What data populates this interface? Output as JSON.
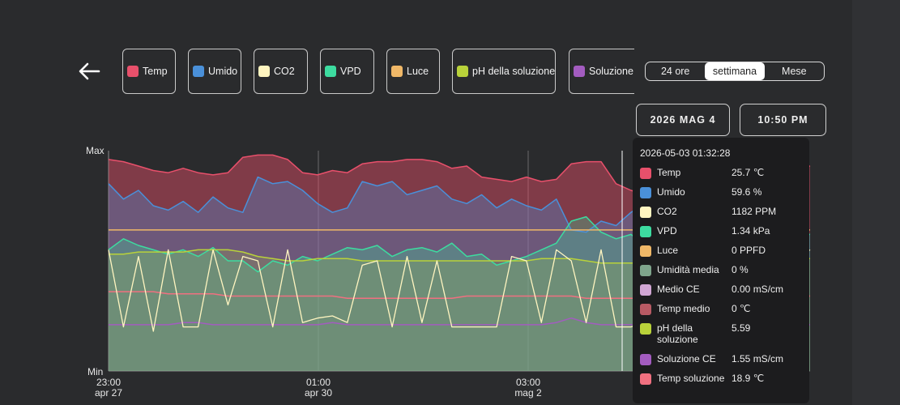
{
  "legend": [
    {
      "label": "Temp",
      "color": "#e8506b"
    },
    {
      "label": "Umido",
      "color": "#4a90d9"
    },
    {
      "label": "CO2",
      "color": "#fff5c0"
    },
    {
      "label": "VPD",
      "color": "#3ddca0"
    },
    {
      "label": "Luce",
      "color": "#f0b868"
    },
    {
      "label": "pH della soluzione",
      "color": "#b9d23a"
    },
    {
      "label": "Soluzione CE",
      "color": "#a35cc0"
    }
  ],
  "range_selector": {
    "options": [
      "24 ore",
      "settimana",
      "Mese"
    ],
    "selected": "settimana"
  },
  "date_button": "2026 MAG 4",
  "time_button": "10:50 PM",
  "chart_data": {
    "type": "line",
    "y_labels": {
      "max": "Max",
      "min": "Min"
    },
    "x_ticks": [
      {
        "time": "23:00",
        "date": "apr 27"
      },
      {
        "time": "01:00",
        "date": "apr 30"
      },
      {
        "time": "03:00",
        "date": "mag 2"
      }
    ],
    "series": [
      {
        "name": "Temp",
        "color": "#e8506b",
        "values": [
          0.96,
          0.95,
          0.93,
          0.91,
          0.9,
          0.92,
          0.9,
          0.89,
          0.9,
          0.97,
          0.98,
          0.98,
          0.96,
          0.9,
          0.89,
          0.91,
          0.9,
          0.94,
          0.95,
          0.95,
          0.96,
          0.96,
          0.95,
          0.92,
          0.93,
          0.88,
          0.87,
          0.86,
          0.88,
          0.86,
          0.87,
          0.94,
          0.95,
          0.95,
          0.85,
          0.82,
          0.8,
          0.8,
          0.81,
          0.8,
          0.82,
          0.94,
          0.94,
          0.92,
          0.9,
          0.9,
          0.92,
          0.93
        ]
      },
      {
        "name": "Umido",
        "color": "#4a90d9",
        "values": [
          0.85,
          0.78,
          0.82,
          0.75,
          0.73,
          0.77,
          0.72,
          0.79,
          0.74,
          0.72,
          0.88,
          0.85,
          0.86,
          0.82,
          0.76,
          0.72,
          0.74,
          0.86,
          0.84,
          0.86,
          0.8,
          0.82,
          0.84,
          0.78,
          0.76,
          0.8,
          0.74,
          0.78,
          0.75,
          0.73,
          0.78,
          0.64,
          0.63,
          0.68,
          0.66,
          0.72,
          0.76,
          0.73,
          0.76,
          0.7,
          0.72,
          0.62,
          0.64,
          0.6,
          0.62,
          0.64,
          0.63,
          0.62
        ]
      },
      {
        "name": "VPD",
        "color": "#3ddca0",
        "values": [
          0.55,
          0.6,
          0.57,
          0.55,
          0.53,
          0.55,
          0.52,
          0.56,
          0.5,
          0.5,
          0.45,
          0.5,
          0.48,
          0.52,
          0.5,
          0.53,
          0.56,
          0.55,
          0.57,
          0.52,
          0.55,
          0.56,
          0.54,
          0.58,
          0.52,
          0.53,
          0.48,
          0.5,
          0.52,
          0.55,
          0.58,
          0.68,
          0.7,
          0.63,
          0.6,
          0.62,
          0.57,
          0.6,
          0.58,
          0.62,
          0.58,
          0.6,
          0.61,
          0.64,
          0.62,
          0.6,
          0.62,
          0.62
        ]
      },
      {
        "name": "pH della soluzione",
        "color": "#b9d23a",
        "values": [
          0.53,
          0.53,
          0.54,
          0.54,
          0.54,
          0.54,
          0.55,
          0.55,
          0.55,
          0.54,
          0.52,
          0.51,
          0.5,
          0.5,
          0.51,
          0.51,
          0.51,
          0.5,
          0.5,
          0.5,
          0.5,
          0.5,
          0.5,
          0.5,
          0.5,
          0.5,
          0.5,
          0.5,
          0.5,
          0.51,
          0.51,
          0.51,
          0.5,
          0.49,
          0.49,
          0.49,
          0.49,
          0.5,
          0.5,
          0.5,
          0.5,
          0.5,
          0.5,
          0.5,
          0.5,
          0.51,
          0.51,
          0.51
        ]
      },
      {
        "name": "Luce",
        "color": "#f0b868",
        "values": [
          0.64,
          0.64,
          0.64,
          0.64,
          0.64,
          0.64,
          0.64,
          0.64,
          0.64,
          0.64,
          0.64,
          0.64,
          0.64,
          0.64,
          0.64,
          0.64,
          0.64,
          0.64,
          0.64,
          0.64,
          0.64,
          0.64,
          0.64,
          0.64,
          0.64,
          0.64,
          0.64,
          0.64,
          0.64,
          0.64,
          0.64,
          0.64,
          0.64,
          0.64,
          0.64,
          0.64,
          0.64,
          0.64,
          0.64,
          0.64,
          0.64,
          0.64,
          0.64,
          0.64,
          0.64,
          0.64,
          0.64,
          0.64
        ]
      },
      {
        "name": "Temp soluzione",
        "color": "#f07080",
        "values": [
          0.36,
          0.36,
          0.36,
          0.36,
          0.35,
          0.35,
          0.35,
          0.35,
          0.34,
          0.34,
          0.34,
          0.34,
          0.34,
          0.34,
          0.34,
          0.34,
          0.33,
          0.33,
          0.33,
          0.33,
          0.33,
          0.33,
          0.33,
          0.33,
          0.34,
          0.34,
          0.34,
          0.34,
          0.34,
          0.34,
          0.34,
          0.34,
          0.33,
          0.33,
          0.33,
          0.33,
          0.33,
          0.33,
          0.33,
          0.34,
          0.34,
          0.34,
          0.34,
          0.34,
          0.34,
          0.34,
          0.34,
          0.34
        ]
      },
      {
        "name": "Soluzione CE",
        "color": "#a35cc0",
        "values": [
          0.21,
          0.21,
          0.21,
          0.21,
          0.21,
          0.22,
          0.22,
          0.21,
          0.21,
          0.21,
          0.21,
          0.21,
          0.21,
          0.21,
          0.21,
          0.22,
          0.21,
          0.21,
          0.21,
          0.21,
          0.21,
          0.21,
          0.21,
          0.21,
          0.21,
          0.21,
          0.21,
          0.21,
          0.21,
          0.21,
          0.22,
          0.24,
          0.22,
          0.21,
          0.21,
          0.21,
          0.21,
          0.21,
          0.21,
          0.21,
          0.21,
          0.21,
          0.21,
          0.21,
          0.21,
          0.21,
          0.21,
          0.21
        ]
      },
      {
        "name": "CO2",
        "color": "#fff5c0",
        "values": [
          0.55,
          0.2,
          0.52,
          0.18,
          0.55,
          0.2,
          0.2,
          0.55,
          0.3,
          0.52,
          0.5,
          0.2,
          0.55,
          0.22,
          0.24,
          0.25,
          0.22,
          0.48,
          0.5,
          0.2,
          0.52,
          0.22,
          0.5,
          0.2,
          0.2,
          0.2,
          0.2,
          0.52,
          0.5,
          0.22,
          0.55,
          0.5,
          0.22,
          0.55,
          0.2,
          0.2,
          0.22,
          0.52,
          0.5,
          0.2,
          0.35,
          0.2,
          0.52,
          0.55,
          0.55,
          0.2,
          0.5,
          0.55
        ]
      }
    ]
  },
  "tooltip": {
    "timestamp": "2026-05-03 01:32:28",
    "rows": [
      {
        "label": "Temp",
        "value": "25.7 ℃",
        "color": "#e8506b"
      },
      {
        "label": "Umido",
        "value": "59.6 %",
        "color": "#4a90d9"
      },
      {
        "label": "CO2",
        "value": "1182 PPM",
        "color": "#fff5c0"
      },
      {
        "label": "VPD",
        "value": "1.34 kPa",
        "color": "#3ddca0"
      },
      {
        "label": "Luce",
        "value": "0 PPFD",
        "color": "#f0b868"
      },
      {
        "label": "Umidità media",
        "value": "0 %",
        "color": "#7fa58c"
      },
      {
        "label": "Medio CE",
        "value": "0.00 mS/cm",
        "color": "#d1a6d4"
      },
      {
        "label": "Temp medio",
        "value": "0 ℃",
        "color": "#b85a64"
      },
      {
        "label": "pH della soluzione",
        "value": "5.59",
        "color": "#b9d23a"
      },
      {
        "label": "Soluzione CE",
        "value": "1.55 mS/cm",
        "color": "#a35cc0"
      },
      {
        "label": "Temp soluzione",
        "value": "18.9 ℃",
        "color": "#f07080"
      }
    ]
  }
}
